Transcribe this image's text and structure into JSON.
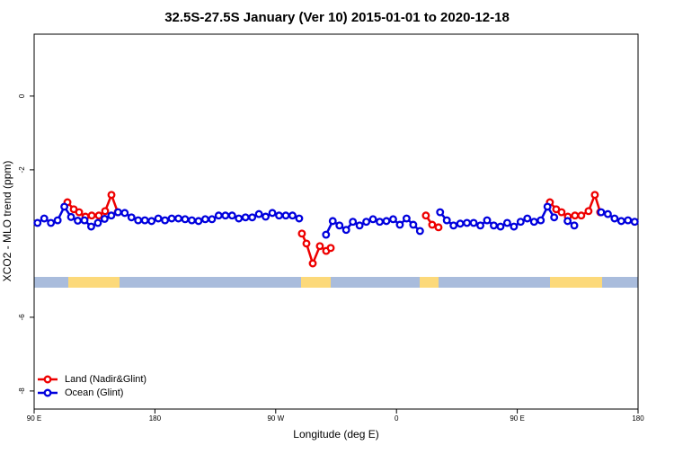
{
  "chart_data": {
    "type": "line",
    "title": "32.5S-27.5S January (Ver 10)   2015-01-01 to 2020-12-18",
    "x_label": "Longitude (deg E)",
    "y_label": "XCO2 - MLO trend (ppm)",
    "xlim": [
      90,
      540
    ],
    "xticks": [
      {
        "value": 90,
        "label": "90 E"
      },
      180,
      {
        "value": 270,
        "label": "90 W"
      },
      {
        "value": 360,
        "label": "0"
      },
      {
        "value": 450,
        "label": "90 E"
      },
      {
        "value": 540,
        "label": "180"
      }
    ],
    "ylim": [
      -8.49,
      1.68
    ],
    "yticks": [
      0,
      -2,
      -6,
      -8
    ],
    "legend": "bottom-left",
    "series": [
      {
        "name": "Land (Nadir&Glint)",
        "color": "#ee0000",
        "x": [
          114.8,
          119.5,
          123.5,
          128.2,
          132.9,
          138.2,
          142.9,
          147.6,
          152.3,
          null,
          289.5,
          292.9,
          297.6,
          302.9,
          307.6,
          311.0,
          null,
          381.9,
          386.6,
          391.3,
          null,
          474.3,
          479.0,
          483.0,
          487.7,
          493.0,
          497.7,
          503.1,
          507.8,
          511.8
        ],
        "values": [
          -2.88,
          -3.07,
          -3.15,
          -3.27,
          -3.24,
          -3.24,
          -3.12,
          -2.68,
          -3.15,
          null,
          -3.73,
          -4.0,
          -4.54,
          -4.07,
          -4.2,
          -4.12,
          null,
          -3.24,
          -3.49,
          -3.56,
          null,
          -2.88,
          -3.07,
          -3.15,
          -3.27,
          -3.24,
          -3.24,
          -3.12,
          -2.68,
          -3.15
        ]
      },
      {
        "name": "Ocean (Glint)",
        "color": "#0000dd",
        "x": [
          92.5,
          97.5,
          102.5,
          107.5,
          112.5,
          117.5,
          122.5,
          127.5,
          132.5,
          137.5,
          142.5,
          147.5,
          152.5,
          157.5,
          162.5,
          167.5,
          172.5,
          177.5,
          182.5,
          187.5,
          192.5,
          197.5,
          202.5,
          207.5,
          212.5,
          217.5,
          222.5,
          227.5,
          232.5,
          237.5,
          242.5,
          247.5,
          252.5,
          257.5,
          262.5,
          267.5,
          272.5,
          277.5,
          282.5,
          287.5,
          292.5,
          297.5,
          302.5,
          307.5,
          312.5,
          317.5,
          322.5,
          327.5,
          332.5,
          337.5,
          342.5,
          347.5,
          352.5,
          357.5,
          362.5,
          367.5,
          372.5,
          377.5,
          382.5,
          387.5,
          392.5,
          397.5,
          402.5,
          407.5,
          412.5,
          417.5,
          422.5,
          427.5,
          432.5,
          437.5,
          442.5,
          447.5,
          452.5,
          457.5,
          462.5,
          467.5,
          472.5,
          477.5,
          482.5,
          487.5,
          492.5,
          497.5,
          502.5,
          507.5,
          512.5,
          517.5,
          522.5,
          527.5,
          532.5,
          537.5
        ],
        "values": [
          -3.44,
          -3.32,
          -3.44,
          -3.37,
          -3.0,
          -3.28,
          -3.38,
          -3.37,
          -3.54,
          -3.44,
          -3.33,
          -3.24,
          -3.15,
          -3.17,
          -3.29,
          -3.37,
          -3.37,
          -3.39,
          -3.32,
          -3.37,
          -3.32,
          -3.32,
          -3.34,
          -3.37,
          -3.39,
          -3.34,
          -3.34,
          -3.24,
          -3.24,
          -3.24,
          -3.32,
          -3.29,
          -3.29,
          -3.2,
          -3.27,
          -3.17,
          -3.24,
          -3.24,
          -3.24,
          -3.32,
          null,
          null,
          null,
          -3.76,
          -3.39,
          -3.51,
          -3.63,
          -3.41,
          -3.51,
          -3.41,
          -3.34,
          -3.41,
          -3.39,
          -3.34,
          -3.49,
          -3.32,
          -3.49,
          -3.66,
          null,
          null,
          -3.15,
          -3.37,
          -3.51,
          -3.46,
          -3.44,
          -3.44,
          -3.51,
          -3.37,
          -3.51,
          -3.54,
          -3.44,
          -3.54,
          -3.41,
          -3.32,
          -3.41,
          -3.37,
          -3.0,
          -3.29,
          null,
          -3.39,
          -3.51,
          null,
          null,
          null,
          -3.15,
          -3.2,
          -3.32,
          -3.39,
          -3.37,
          -3.41
        ]
      }
    ]
  }
}
